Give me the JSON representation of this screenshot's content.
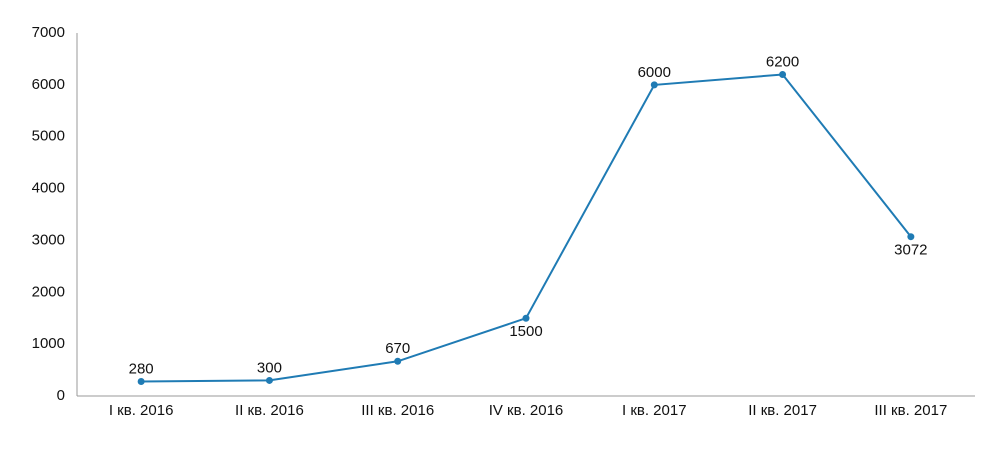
{
  "chart_data": {
    "type": "line",
    "categories": [
      "I кв. 2016",
      "II кв. 2016",
      "III кв. 2016",
      "IV кв. 2016",
      "I кв. 2017",
      "II кв. 2017",
      "III кв. 2017"
    ],
    "series": [
      {
        "values": [
          280,
          300,
          670,
          1500,
          6000,
          6200,
          3072
        ],
        "color": "#1f7bb4"
      }
    ],
    "ylim": [
      0,
      7000
    ],
    "yticks": [
      0,
      1000,
      2000,
      3000,
      4000,
      5000,
      6000,
      7000
    ],
    "grid": false
  }
}
